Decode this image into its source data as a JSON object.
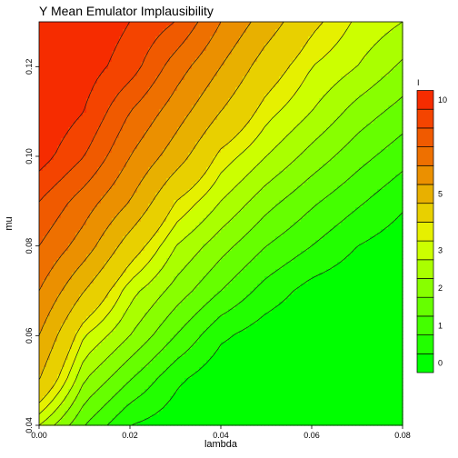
{
  "chart_data": {
    "type": "heatmap",
    "subtype": "filled-contour",
    "title": "Y Mean Emulator Implausibility",
    "xlabel": "lambda",
    "ylabel": "mu",
    "xlim": [
      0.0,
      0.08
    ],
    "ylim": [
      0.04,
      0.13
    ],
    "xticks": [
      "0.00",
      "0.02",
      "0.04",
      "0.06",
      "0.08"
    ],
    "xtick_values": [
      0.0,
      0.02,
      0.04,
      0.06,
      0.08
    ],
    "yticks": [
      "0.04",
      "0.06",
      "0.08",
      "0.10",
      "0.12"
    ],
    "ytick_values": [
      0.04,
      0.06,
      0.08,
      0.1,
      0.12
    ],
    "grid": false,
    "legend": {
      "title": "I",
      "placement": "right",
      "levels": [
        0,
        0.5,
        1,
        1.5,
        2,
        2.5,
        3,
        3.5,
        4,
        5,
        6,
        7,
        8,
        9,
        10,
        11
      ],
      "tick_labels": [
        "0",
        "1",
        "2",
        "3",
        "5",
        "10"
      ],
      "tick_values": [
        0,
        1,
        2,
        3,
        5,
        10
      ],
      "colors": [
        "#00ff00",
        "#22ff00",
        "#44ff00",
        "#66ff00",
        "#88ff00",
        "#aaff00",
        "#ccff00",
        "#e6f000",
        "#e8d000",
        "#e8b000",
        "#eb9000",
        "#ee7000",
        "#f05a00",
        "#f44400",
        "#f62c00"
      ]
    },
    "value_grid": {
      "note": "",
      "x": [
        0.0,
        0.01,
        0.02,
        0.03,
        0.04,
        0.05,
        0.06,
        0.07,
        0.08
      ],
      "y": [
        0.04,
        0.05,
        0.06,
        0.07,
        0.08,
        0.09,
        0.1,
        0.11,
        0.12,
        0.13
      ],
      "z": [
        [
          3.0,
          1.5,
          0.5,
          0.2,
          0.0,
          0.0,
          0.0,
          0.0,
          0.0
        ],
        [
          5.0,
          2.5,
          1.5,
          0.6,
          0.1,
          0.0,
          0.0,
          0.0,
          0.0
        ],
        [
          6.0,
          3.5,
          2.5,
          1.5,
          0.6,
          0.2,
          0.0,
          0.0,
          0.0
        ],
        [
          7.0,
          5.0,
          3.2,
          2.3,
          1.5,
          0.8,
          0.3,
          0.1,
          0.0
        ],
        [
          8.0,
          6.5,
          4.5,
          3.0,
          2.2,
          1.5,
          1.0,
          0.5,
          0.2
        ],
        [
          9.0,
          7.5,
          6.0,
          4.0,
          3.0,
          2.2,
          1.6,
          1.1,
          0.6
        ],
        [
          10.5,
          9.0,
          7.0,
          5.5,
          3.8,
          3.0,
          2.3,
          1.7,
          1.2
        ],
        [
          11.0,
          10.0,
          8.0,
          6.5,
          5.0,
          3.7,
          3.0,
          2.3,
          1.8
        ],
        [
          11.0,
          10.5,
          9.5,
          7.5,
          6.0,
          4.5,
          3.5,
          3.0,
          2.4
        ],
        [
          11.0,
          10.8,
          10.0,
          9.0,
          7.0,
          5.5,
          4.2,
          3.4,
          3.0
        ]
      ]
    }
  }
}
